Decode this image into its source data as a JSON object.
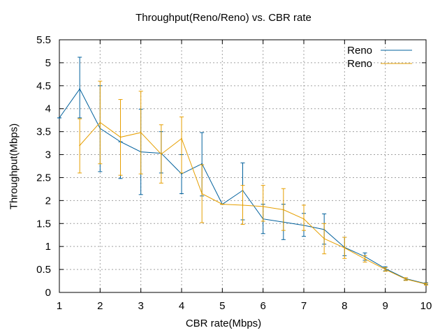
{
  "chart_data": {
    "type": "line",
    "title": "Throughput(Reno/Reno) vs. CBR rate",
    "xlabel": "CBR rate(Mbps)",
    "ylabel": "Throughput(Mbps)",
    "xlim": [
      1,
      10
    ],
    "ylim": [
      0,
      5.5
    ],
    "xticks": [
      1,
      2,
      3,
      4,
      5,
      6,
      7,
      8,
      9,
      10
    ],
    "yticks": [
      0,
      0.5,
      1,
      1.5,
      2,
      2.5,
      3,
      3.5,
      4,
      4.5,
      5,
      5.5
    ],
    "grid": true,
    "legend_position": "top-right",
    "error_bars": true,
    "series": [
      {
        "name": "Reno",
        "color": "#00609c",
        "x": [
          1,
          1.5,
          2,
          2.5,
          3,
          3.5,
          4,
          4.5,
          5,
          5.5,
          6,
          6.5,
          7,
          7.5,
          8,
          8.5,
          9,
          9.5,
          10
        ],
        "y": [
          3.8,
          4.43,
          3.57,
          3.28,
          3.06,
          3.03,
          2.58,
          2.8,
          1.92,
          2.22,
          1.6,
          1.53,
          1.46,
          1.37,
          0.98,
          0.78,
          0.52,
          0.3,
          0.19
        ],
        "err_low": [
          3.8,
          3.8,
          2.63,
          2.48,
          2.13,
          2.6,
          2.15,
          2.1,
          1.92,
          1.58,
          1.28,
          1.15,
          1.22,
          1.05,
          0.8,
          0.7,
          0.47,
          0.27,
          0.17
        ],
        "err_high": [
          3.8,
          5.12,
          4.5,
          3.28,
          3.99,
          3.5,
          3.0,
          3.48,
          1.92,
          2.82,
          1.92,
          1.92,
          1.72,
          1.71,
          1.2,
          0.86,
          0.56,
          0.32,
          0.21
        ]
      },
      {
        "name": "Reno",
        "color": "#e69f00",
        "x": [
          1.5,
          2,
          2.5,
          3,
          3.5,
          4,
          4.5,
          5,
          5.5,
          6,
          6.5,
          7,
          7.5,
          8,
          8.5,
          9,
          9.5,
          10
        ],
        "y": [
          3.2,
          3.7,
          3.38,
          3.48,
          3.01,
          3.35,
          2.15,
          1.92,
          1.9,
          1.87,
          1.8,
          1.6,
          1.17,
          0.97,
          0.73,
          0.5,
          0.29,
          0.18
        ],
        "err_low": [
          2.6,
          2.8,
          2.55,
          2.58,
          2.38,
          2.6,
          1.52,
          1.92,
          1.48,
          1.55,
          1.35,
          1.35,
          0.84,
          0.74,
          0.66,
          0.46,
          0.26,
          0.16
        ],
        "err_high": [
          3.78,
          4.6,
          4.2,
          4.38,
          3.65,
          3.82,
          2.78,
          1.92,
          2.33,
          2.33,
          2.26,
          1.9,
          1.5,
          1.2,
          0.8,
          0.54,
          0.32,
          0.2
        ]
      }
    ]
  }
}
